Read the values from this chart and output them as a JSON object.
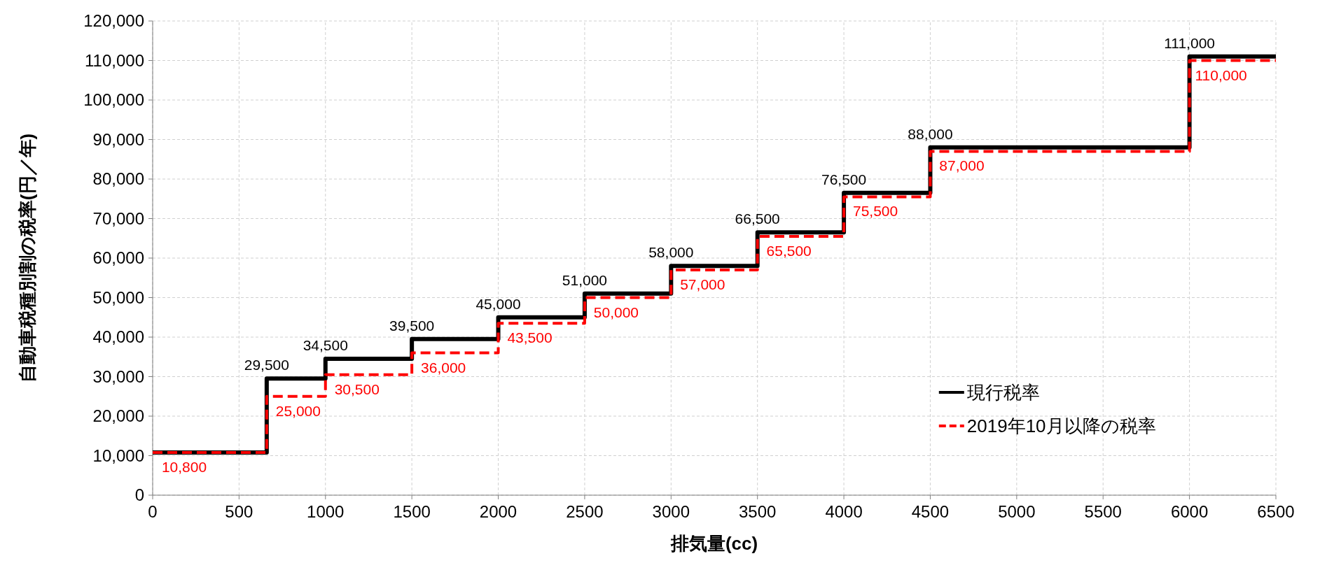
{
  "chart_data": {
    "type": "step",
    "xlabel": "排気量(cc)",
    "ylabel": "自動車税種別割の税率(円／年)",
    "x": [
      0,
      660,
      1000,
      1500,
      2000,
      2500,
      3000,
      3500,
      4000,
      4500,
      6000,
      6500
    ],
    "xlim": [
      0,
      6500
    ],
    "xticks": [
      0,
      500,
      1000,
      1500,
      2000,
      2500,
      3000,
      3500,
      4000,
      4500,
      5000,
      5500,
      6000,
      6500
    ],
    "ylim": [
      0,
      120000
    ],
    "yticks": [
      0,
      {
        "value": 10000,
        "label": "10,000"
      },
      {
        "value": 20000,
        "label": "20,000"
      },
      {
        "value": 30000,
        "label": "30,000"
      },
      {
        "value": 40000,
        "label": "40,000"
      },
      {
        "value": 50000,
        "label": "50,000"
      },
      {
        "value": 60000,
        "label": "60,000"
      },
      {
        "value": 70000,
        "label": "70,000"
      },
      {
        "value": 80000,
        "label": "80,000"
      },
      {
        "value": 90000,
        "label": "90,000"
      },
      {
        "value": 100000,
        "label": "100,000"
      },
      {
        "value": 110000,
        "label": "110,000"
      },
      {
        "value": 120000,
        "label": "120,000"
      }
    ],
    "grid": true,
    "legend": "bottom right",
    "series": [
      {
        "name": "現行税率",
        "color": "#000000",
        "line_style": "solid",
        "values": [
          10800,
          29500,
          34500,
          39500,
          45000,
          51000,
          58000,
          66500,
          76500,
          88000,
          111000,
          111000
        ],
        "value_labels": [
          null,
          "29,500",
          "34,500",
          "39,500",
          "45,000",
          "51,000",
          "58,000",
          "66,500",
          "76,500",
          "88,000",
          "111,000",
          null
        ]
      },
      {
        "name": "2019年10月以降の税率",
        "color": "#ff0000",
        "line_style": "dashed",
        "values": [
          10800,
          25000,
          30500,
          36000,
          43500,
          50000,
          57000,
          65500,
          75500,
          87000,
          110000,
          110000
        ],
        "value_labels": [
          "10,800",
          "25,000",
          "30,500",
          "36,000",
          "43,500",
          "50,000",
          "57,000",
          "65,500",
          "75,500",
          "87,000",
          "110,000",
          null
        ]
      }
    ]
  }
}
